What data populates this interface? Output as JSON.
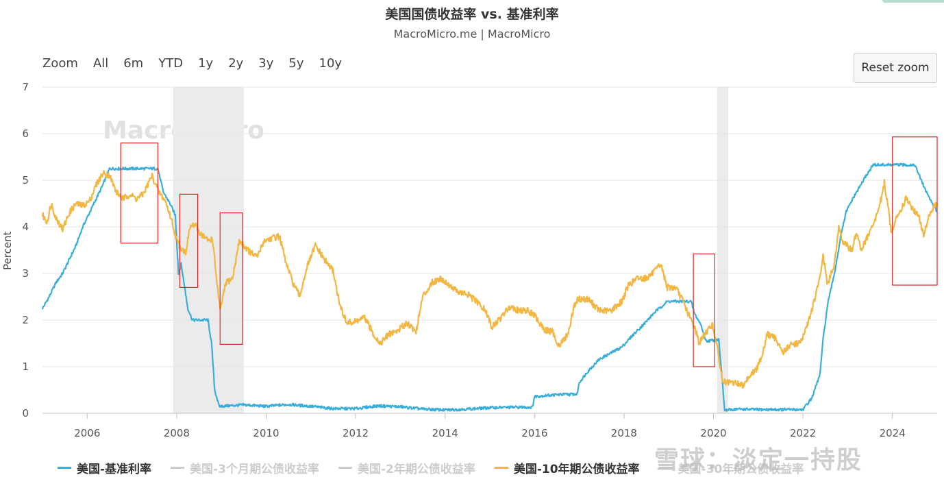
{
  "title": "美国国债收益率 vs. 基准利率",
  "subtitle": "MacroMicro.me | MacroMicro",
  "range_selector": {
    "zoom_label": "Zoom",
    "buttons": [
      "All",
      "6m",
      "YTD",
      "1y",
      "2y",
      "3y",
      "5y",
      "10y"
    ]
  },
  "reset_zoom_label": "Reset zoom",
  "watermark_logo": "MacroMicro",
  "watermark_corner": "雪球：淡定一持股",
  "colors": {
    "fed_rate": "#3aaed8",
    "ten_year": "#f2b642",
    "recession_band": "#ebebeb",
    "annotation_box": "#e02020",
    "legend_off": "#cccccc"
  },
  "legend": [
    {
      "label": "美国-基准利率",
      "color": "#3aaed8",
      "visible": true
    },
    {
      "label": "美国-3个月期公债收益率",
      "color": "#cccccc",
      "visible": false
    },
    {
      "label": "美国-2年期公债收益率",
      "color": "#cccccc",
      "visible": false
    },
    {
      "label": "美国-10年期公债收益率",
      "color": "#f2b642",
      "visible": true
    },
    {
      "label": "美国-30年期公债收益率",
      "color": "#cccccc",
      "visible": false
    }
  ],
  "chart_data": {
    "type": "line",
    "title": "美国国债收益率 vs. 基准利率",
    "subtitle": "MacroMicro.me | MacroMicro",
    "ylabel": "Percent",
    "xlim": [
      2005.0,
      2025.0
    ],
    "ylim": [
      0,
      7
    ],
    "y_ticks": [
      0,
      1,
      2,
      3,
      4,
      5,
      6,
      7
    ],
    "x_ticks": [
      2006,
      2008,
      2010,
      2012,
      2014,
      2016,
      2018,
      2020,
      2022,
      2024
    ],
    "grid": true,
    "legend_position": "bottom",
    "recession_bands": [
      [
        2007.92,
        2009.5
      ],
      [
        2020.08,
        2020.33
      ]
    ],
    "annotation_boxes": [
      {
        "x": [
          2006.75,
          2007.58
        ],
        "y": [
          3.65,
          5.8
        ]
      },
      {
        "x": [
          2008.07,
          2008.47
        ],
        "y": [
          2.7,
          4.7
        ]
      },
      {
        "x": [
          2008.97,
          2009.47
        ],
        "y": [
          1.48,
          4.3
        ]
      },
      {
        "x": [
          2019.55,
          2020.03
        ],
        "y": [
          1.0,
          3.42
        ]
      },
      {
        "x": [
          2024.0,
          2025.0
        ],
        "y": [
          2.75,
          5.93
        ]
      }
    ],
    "series": [
      {
        "name": "美国-基准利率",
        "points": [
          [
            2005.0,
            2.25
          ],
          [
            2005.15,
            2.5
          ],
          [
            2005.3,
            2.8
          ],
          [
            2005.45,
            3.0
          ],
          [
            2005.6,
            3.3
          ],
          [
            2005.75,
            3.6
          ],
          [
            2005.9,
            4.0
          ],
          [
            2006.05,
            4.3
          ],
          [
            2006.2,
            4.6
          ],
          [
            2006.35,
            4.9
          ],
          [
            2006.5,
            5.25
          ],
          [
            2006.9,
            5.25
          ],
          [
            2007.3,
            5.25
          ],
          [
            2007.58,
            5.25
          ],
          [
            2007.7,
            4.75
          ],
          [
            2007.85,
            4.5
          ],
          [
            2007.97,
            4.25
          ],
          [
            2008.04,
            3.0
          ],
          [
            2008.1,
            3.2
          ],
          [
            2008.25,
            2.25
          ],
          [
            2008.35,
            2.0
          ],
          [
            2008.7,
            2.0
          ],
          [
            2008.78,
            1.5
          ],
          [
            2008.85,
            0.5
          ],
          [
            2008.95,
            0.15
          ],
          [
            2009.5,
            0.18
          ],
          [
            2010.0,
            0.15
          ],
          [
            2010.5,
            0.19
          ],
          [
            2011.0,
            0.15
          ],
          [
            2011.5,
            0.1
          ],
          [
            2012.0,
            0.1
          ],
          [
            2012.5,
            0.16
          ],
          [
            2013.0,
            0.14
          ],
          [
            2013.5,
            0.09
          ],
          [
            2014.0,
            0.07
          ],
          [
            2014.5,
            0.09
          ],
          [
            2015.0,
            0.12
          ],
          [
            2015.5,
            0.13
          ],
          [
            2015.95,
            0.13
          ],
          [
            2016.0,
            0.36
          ],
          [
            2016.5,
            0.4
          ],
          [
            2016.95,
            0.41
          ],
          [
            2017.0,
            0.66
          ],
          [
            2017.2,
            0.91
          ],
          [
            2017.45,
            1.16
          ],
          [
            2017.95,
            1.42
          ],
          [
            2018.2,
            1.68
          ],
          [
            2018.45,
            1.92
          ],
          [
            2018.7,
            2.18
          ],
          [
            2018.97,
            2.4
          ],
          [
            2019.5,
            2.4
          ],
          [
            2019.58,
            2.13
          ],
          [
            2019.72,
            1.9
          ],
          [
            2019.83,
            1.55
          ],
          [
            2020.12,
            1.58
          ],
          [
            2020.2,
            0.65
          ],
          [
            2020.25,
            0.06
          ],
          [
            2020.5,
            0.09
          ],
          [
            2021.0,
            0.08
          ],
          [
            2021.5,
            0.08
          ],
          [
            2022.0,
            0.08
          ],
          [
            2022.2,
            0.33
          ],
          [
            2022.38,
            0.83
          ],
          [
            2022.45,
            1.58
          ],
          [
            2022.55,
            2.33
          ],
          [
            2022.72,
            3.08
          ],
          [
            2022.85,
            3.83
          ],
          [
            2022.97,
            4.33
          ],
          [
            2023.1,
            4.58
          ],
          [
            2023.25,
            4.83
          ],
          [
            2023.4,
            5.08
          ],
          [
            2023.57,
            5.33
          ],
          [
            2024.0,
            5.33
          ],
          [
            2024.5,
            5.33
          ],
          [
            2024.72,
            4.83
          ],
          [
            2024.85,
            4.58
          ],
          [
            2025.0,
            4.33
          ]
        ]
      },
      {
        "name": "美国-10年期公债收益率",
        "points": [
          [
            2005.0,
            4.25
          ],
          [
            2005.1,
            4.1
          ],
          [
            2005.2,
            4.5
          ],
          [
            2005.3,
            4.2
          ],
          [
            2005.45,
            3.95
          ],
          [
            2005.6,
            4.3
          ],
          [
            2005.75,
            4.5
          ],
          [
            2005.9,
            4.45
          ],
          [
            2006.05,
            4.55
          ],
          [
            2006.2,
            4.9
          ],
          [
            2006.35,
            5.15
          ],
          [
            2006.5,
            5.1
          ],
          [
            2006.65,
            4.75
          ],
          [
            2006.8,
            4.6
          ],
          [
            2006.95,
            4.7
          ],
          [
            2007.1,
            4.6
          ],
          [
            2007.25,
            4.7
          ],
          [
            2007.45,
            5.1
          ],
          [
            2007.6,
            4.75
          ],
          [
            2007.75,
            4.55
          ],
          [
            2007.9,
            4.1
          ],
          [
            2008.0,
            3.7
          ],
          [
            2008.1,
            3.55
          ],
          [
            2008.2,
            3.45
          ],
          [
            2008.3,
            4.0
          ],
          [
            2008.4,
            4.05
          ],
          [
            2008.5,
            3.9
          ],
          [
            2008.6,
            3.8
          ],
          [
            2008.7,
            3.7
          ],
          [
            2008.8,
            3.75
          ],
          [
            2008.9,
            2.8
          ],
          [
            2008.97,
            2.2
          ],
          [
            2009.1,
            2.8
          ],
          [
            2009.25,
            2.9
          ],
          [
            2009.4,
            3.7
          ],
          [
            2009.5,
            3.6
          ],
          [
            2009.65,
            3.45
          ],
          [
            2009.8,
            3.35
          ],
          [
            2009.95,
            3.7
          ],
          [
            2010.1,
            3.75
          ],
          [
            2010.3,
            3.8
          ],
          [
            2010.45,
            3.2
          ],
          [
            2010.6,
            2.8
          ],
          [
            2010.75,
            2.5
          ],
          [
            2010.9,
            3.1
          ],
          [
            2011.1,
            3.6
          ],
          [
            2011.3,
            3.3
          ],
          [
            2011.5,
            3.05
          ],
          [
            2011.65,
            2.3
          ],
          [
            2011.8,
            1.95
          ],
          [
            2011.95,
            1.95
          ],
          [
            2012.2,
            2.05
          ],
          [
            2012.4,
            1.7
          ],
          [
            2012.55,
            1.5
          ],
          [
            2012.75,
            1.7
          ],
          [
            2012.95,
            1.78
          ],
          [
            2013.15,
            1.95
          ],
          [
            2013.35,
            1.75
          ],
          [
            2013.5,
            2.5
          ],
          [
            2013.7,
            2.8
          ],
          [
            2013.9,
            2.9
          ],
          [
            2014.1,
            2.75
          ],
          [
            2014.3,
            2.6
          ],
          [
            2014.5,
            2.55
          ],
          [
            2014.7,
            2.4
          ],
          [
            2014.9,
            2.2
          ],
          [
            2015.05,
            1.85
          ],
          [
            2015.25,
            2.05
          ],
          [
            2015.45,
            2.3
          ],
          [
            2015.65,
            2.2
          ],
          [
            2015.85,
            2.2
          ],
          [
            2016.0,
            2.1
          ],
          [
            2016.2,
            1.8
          ],
          [
            2016.4,
            1.75
          ],
          [
            2016.55,
            1.45
          ],
          [
            2016.75,
            1.7
          ],
          [
            2016.88,
            2.3
          ],
          [
            2016.97,
            2.45
          ],
          [
            2017.2,
            2.45
          ],
          [
            2017.45,
            2.2
          ],
          [
            2017.7,
            2.2
          ],
          [
            2017.95,
            2.4
          ],
          [
            2018.1,
            2.75
          ],
          [
            2018.3,
            2.9
          ],
          [
            2018.5,
            2.9
          ],
          [
            2018.7,
            3.05
          ],
          [
            2018.82,
            3.2
          ],
          [
            2018.97,
            2.7
          ],
          [
            2019.15,
            2.7
          ],
          [
            2019.3,
            2.45
          ],
          [
            2019.45,
            2.1
          ],
          [
            2019.6,
            1.8
          ],
          [
            2019.68,
            1.5
          ],
          [
            2019.8,
            1.7
          ],
          [
            2019.97,
            1.9
          ],
          [
            2020.05,
            1.6
          ],
          [
            2020.2,
            0.7
          ],
          [
            2020.3,
            0.65
          ],
          [
            2020.5,
            0.65
          ],
          [
            2020.65,
            0.6
          ],
          [
            2020.8,
            0.8
          ],
          [
            2020.97,
            0.95
          ],
          [
            2021.1,
            1.3
          ],
          [
            2021.2,
            1.7
          ],
          [
            2021.4,
            1.6
          ],
          [
            2021.55,
            1.3
          ],
          [
            2021.7,
            1.45
          ],
          [
            2021.85,
            1.5
          ],
          [
            2021.97,
            1.55
          ],
          [
            2022.1,
            1.9
          ],
          [
            2022.25,
            2.4
          ],
          [
            2022.38,
            2.9
          ],
          [
            2022.45,
            3.4
          ],
          [
            2022.55,
            2.75
          ],
          [
            2022.7,
            3.2
          ],
          [
            2022.8,
            4.0
          ],
          [
            2022.88,
            3.7
          ],
          [
            2022.97,
            3.6
          ],
          [
            2023.1,
            3.5
          ],
          [
            2023.2,
            3.9
          ],
          [
            2023.3,
            3.5
          ],
          [
            2023.45,
            3.8
          ],
          [
            2023.6,
            4.1
          ],
          [
            2023.75,
            4.6
          ],
          [
            2023.82,
            4.95
          ],
          [
            2023.92,
            4.3
          ],
          [
            2023.97,
            3.9
          ],
          [
            2024.1,
            4.2
          ],
          [
            2024.3,
            4.6
          ],
          [
            2024.45,
            4.4
          ],
          [
            2024.6,
            4.2
          ],
          [
            2024.7,
            3.8
          ],
          [
            2024.8,
            4.2
          ],
          [
            2024.9,
            4.4
          ],
          [
            2025.0,
            4.5
          ]
        ]
      }
    ]
  }
}
